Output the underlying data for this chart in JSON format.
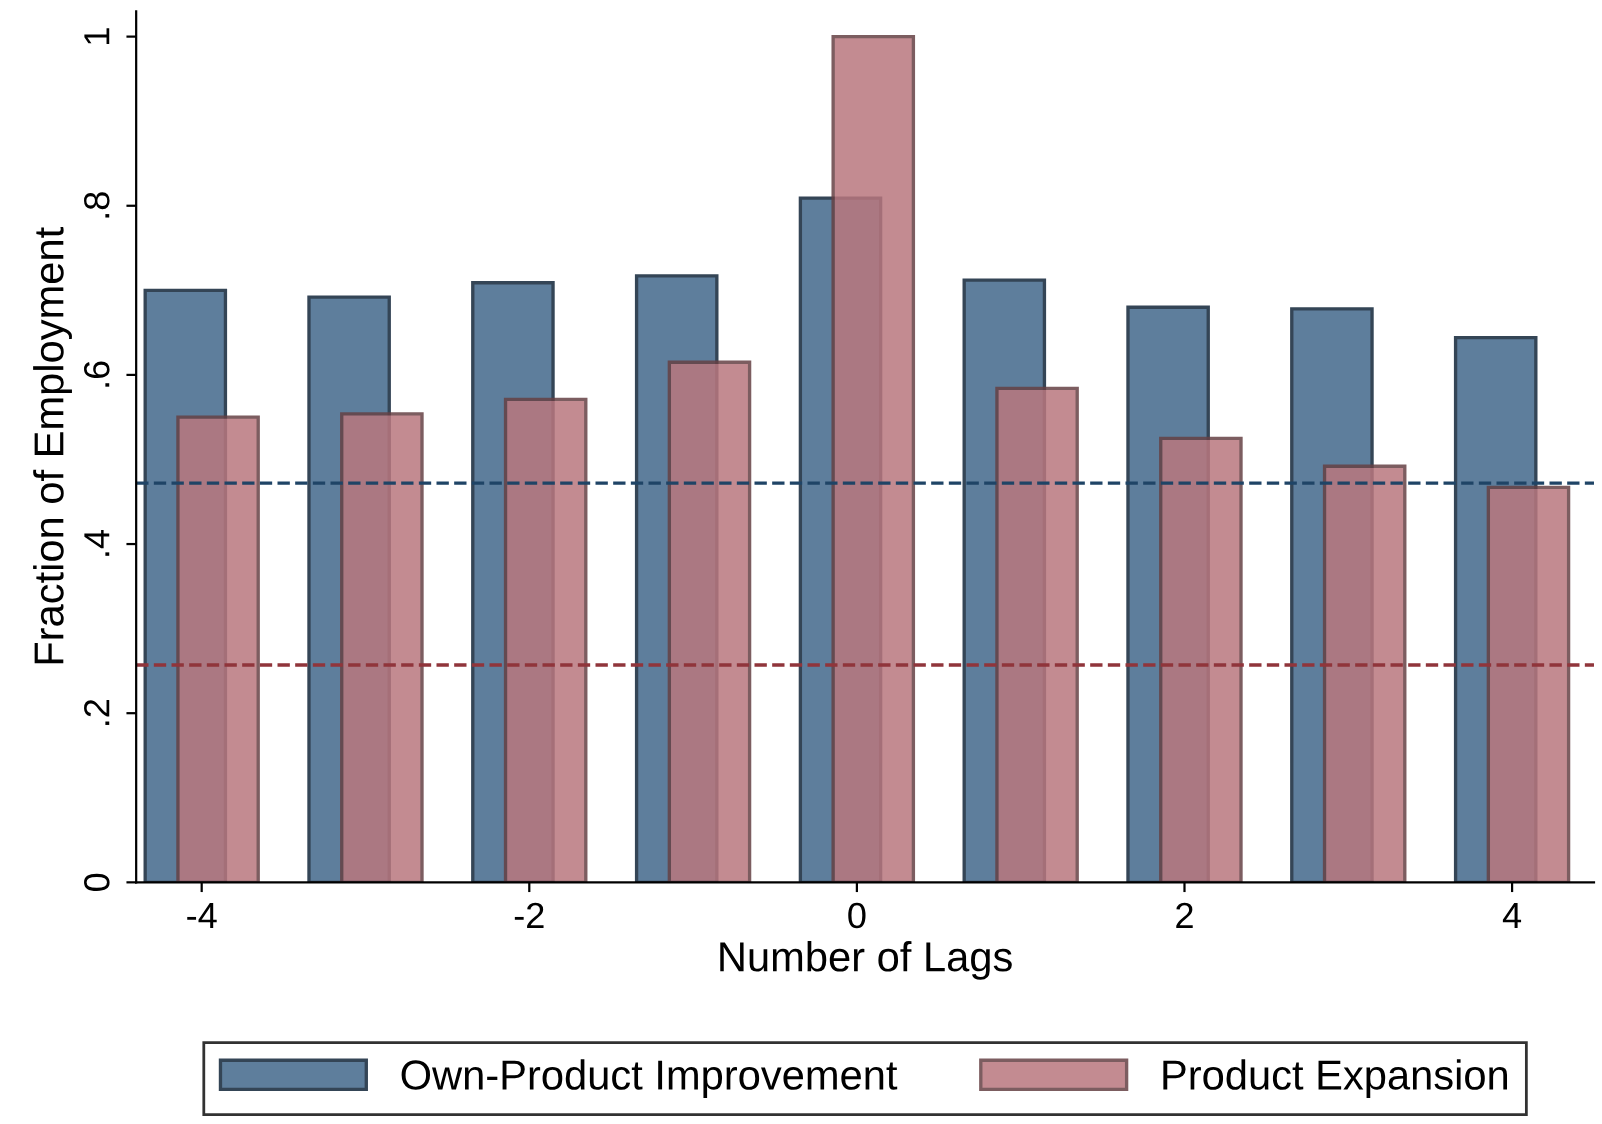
{
  "chart_data": {
    "type": "bar",
    "xlabel": "Number of Lags",
    "ylabel": "Fraction of Employment",
    "x": [
      -4,
      -3,
      -2,
      -1,
      0,
      1,
      2,
      3,
      4
    ],
    "series": [
      {
        "name": "Own-Product Improvement",
        "color": "#5e7e9c",
        "values": [
          0.7,
          0.692,
          0.709,
          0.717,
          0.809,
          0.712,
          0.68,
          0.678,
          0.644
        ]
      },
      {
        "name": "Product Expansion",
        "color": "#b9777e",
        "values": [
          0.55,
          0.554,
          0.571,
          0.615,
          1.0,
          0.584,
          0.525,
          0.492,
          0.467
        ]
      }
    ],
    "xlim": [
      -4.4,
      4.5
    ],
    "xticks": [
      -4,
      -2,
      0,
      2,
      4
    ],
    "ylim": [
      0,
      1.03
    ],
    "yticks": [
      0,
      {
        "value": 0.2,
        "label": ".2"
      },
      {
        "value": 0.4,
        "label": ".4"
      },
      {
        "value": 0.6,
        "label": ".6"
      },
      {
        "value": 0.8,
        "label": ".8"
      },
      1
    ],
    "ref_lines": [
      {
        "axis": "y",
        "value": 0.472,
        "color": "#1f4466",
        "line_style": "dashed"
      },
      {
        "axis": "y",
        "value": 0.257,
        "color": "#90353b",
        "line_style": "dashed"
      }
    ],
    "grid": false,
    "legend": "bottom"
  }
}
